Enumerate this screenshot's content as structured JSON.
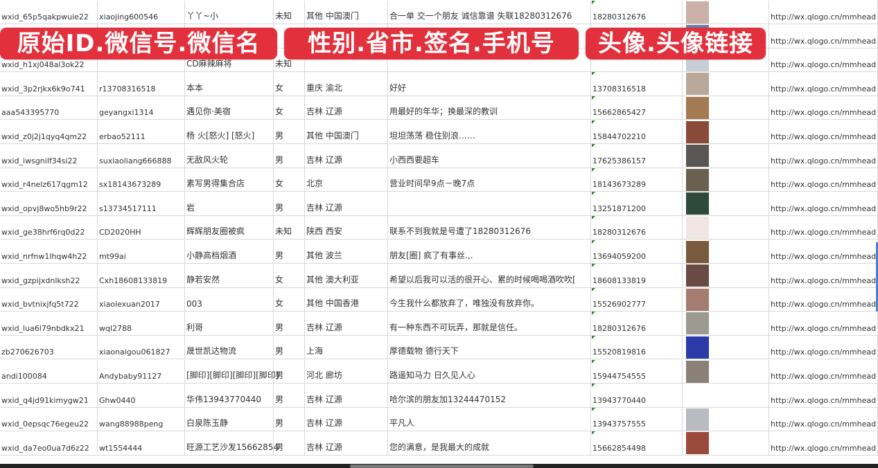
{
  "overlays": {
    "label1": "原始ID.微信号.微信名",
    "label2": "性别.省市.签名.手机号",
    "label3": "头像.头像链接"
  },
  "colors": {
    "overlay": "#e3303d",
    "grid": "#d8d8d8",
    "cell_marker": "#2a8a3a"
  },
  "rows": [
    {
      "id": "wxid_65p5qakpwuie22",
      "wechat": "xiaojing600546",
      "name": "丫丫~小",
      "gender": "未知",
      "region": "其他 中国澳门",
      "signature": "合一单 交一个朋友 诚信靠谱 失联18280312676",
      "phone": "18280312676",
      "avatar": "#c9b1a8",
      "url": "http://wx.qlogo.cn/mmhead"
    },
    {
      "id": "",
      "wechat": "",
      "name": "",
      "gender": "",
      "region": "",
      "signature": "",
      "phone": "",
      "avatar": "#6f7fa8",
      "url": "http://wx.qlogo.cn/mmhead"
    },
    {
      "id": "wxid_h1xj048al3ok22",
      "wechat": "",
      "name": "CD麻辣麻将",
      "gender": "未知",
      "region": "",
      "signature": "",
      "phone": "",
      "avatar": "#c8cdd6",
      "url": "http://wx.qlogo.cn/mmhead"
    },
    {
      "id": "wxid_3p2rjkx6k9o741",
      "wechat": "r13708316518",
      "name": "本本",
      "gender": "女",
      "region": "重庆 渝北",
      "signature": "好好",
      "phone": "13708316518",
      "avatar": "#b9a79a",
      "url": "http://wx.qlogo.cn/mmhead"
    },
    {
      "id": "aaa543395770",
      "wechat": "geyangxi1314",
      "name": "遇见你·美宿",
      "gender": "女",
      "region": "吉林 辽源",
      "signature": "用最好的年华；换最深的教训",
      "phone": "15662865427",
      "avatar": "#a37a52",
      "url": "http://wx.qlogo.cn/mmhead"
    },
    {
      "id": "wxid_z0j2j1qyq4qm22",
      "wechat": "erbao52111",
      "name": "杨 火[怒火] [怒火]",
      "gender": "男",
      "region": "其他 中国澳门",
      "signature": "坦坦荡荡 稳住别浪……",
      "phone": "15844702210",
      "avatar": "#8a4a3a",
      "url": "http://wx.qlogo.cn/mmhead"
    },
    {
      "id": "wxid_iwsgnilf34si22",
      "wechat": "suxiaoliang666888",
      "name": "无敌风火轮",
      "gender": "男",
      "region": "吉林 辽源",
      "signature": "小西西要超车",
      "phone": "17625386157",
      "avatar": "#5a5654",
      "url": "http://wx.qlogo.cn/mmhead"
    },
    {
      "id": "wxid_r4nelz617qgm12",
      "wechat": "sx18143673289",
      "name": "素写男得集合店",
      "gender": "女",
      "region": "北京",
      "signature": "营业时间早9点－晚7点",
      "phone": "18143673289",
      "avatar": "#6a6050",
      "url": "http://wx.qlogo.cn/mmhead"
    },
    {
      "id": "wxid_opvj8wo5hb9r22",
      "wechat": "s13734517111",
      "name": "岩",
      "gender": "男",
      "region": "吉林 辽源",
      "signature": "",
      "phone": "13251871200",
      "avatar": "#2e4a3a",
      "url": "http://wx.qlogo.cn/mmhead"
    },
    {
      "id": "wxid_ge38hrf6rq0d22",
      "wechat": "CD2020HH",
      "name": "辉辉朋友圈被疯",
      "gender": "未知",
      "region": "陕西 西安",
      "signature": "联系不到我就是号遭了18280312676",
      "phone": "18280312676",
      "avatar": "#f1e6e2",
      "url": "http://wx.qlogo.cn/mmhead"
    },
    {
      "id": "wxid_nrfnw1lhqw4h22",
      "wechat": "mt99ai",
      "name": "小静高档烟酒",
      "gender": "男",
      "region": "其他 波兰",
      "signature": "朋友[圈] 疯了有事丝.,.",
      "phone": "13694059200",
      "avatar": "#7a5a3e",
      "url": "http://wx.qlogo.cn/mmhead"
    },
    {
      "id": "wxid_gzpijxdnlksh22",
      "wechat": "Cxh18608133819",
      "name": "静若安然",
      "gender": "女",
      "region": "其他 澳大利亚",
      "signature": "希望以后我可以活的很开心、累的时候喝喝酒吹吹[",
      "phone": "18608133819",
      "avatar": "#6a4a44",
      "url": "http://wx.qlogo.cn/mmhead"
    },
    {
      "id": "wxid_bvtnixjfq5t722",
      "wechat": "xiaolexuan2017",
      "name": "003",
      "gender": "女",
      "region": "其他 中国香港",
      "signature": "今生我什么都放弃了，唯独没有放弃你。",
      "phone": "15526902777",
      "avatar": "#a67c70",
      "url": "http://wx.qlogo.cn/mmhead"
    },
    {
      "id": "wxid_lua6l79nbdkx21",
      "wechat": "wql2788",
      "name": "利哥",
      "gender": "男",
      "region": "吉林 辽源",
      "signature": "有一种东西不可玩弄，那就是信任。",
      "phone": "18280312676",
      "avatar": "#9a9a90",
      "url": "http://wx.qlogo.cn/mmhead"
    },
    {
      "id": "zb270626703",
      "wechat": "xiaonaigou061827",
      "name": "晟世凯达物流",
      "gender": "男",
      "region": "上海",
      "signature": "厚德载物 德行天下",
      "phone": "15520819816",
      "avatar": "#2a3aa8",
      "url": "http://wx.qlogo.cn/mmhead"
    },
    {
      "id": "andi100084",
      "wechat": "Andybaby91127",
      "name": "[脚印][脚印][脚印][脚印]",
      "gender": "男",
      "region": "河北 廊坊",
      "signature": "路遥知马力 日久见人心",
      "phone": "15944754555",
      "avatar": "#8a8078",
      "url": "http://wx.qlogo.cn/mmhead"
    },
    {
      "id": "wxid_q4jd91kimygw21",
      "wechat": "Ghw0440",
      "name": "华伟13943770440",
      "gender": "男",
      "region": "吉林 辽源",
      "signature": "哈尔滨的朋友加13244470152",
      "phone": "13943770440",
      "avatar": "#ffffff",
      "url": "http://wx.qlogo.cn/mmhead"
    },
    {
      "id": "wxid_0epsqc76egeu22",
      "wechat": "wang88988peng",
      "name": "白泉陈玉静",
      "gender": "男",
      "region": "吉林 辽源",
      "signature": "平凡人",
      "phone": "13943757555",
      "avatar": "#b8bcc2",
      "url": "http://wx.qlogo.cn/mmhead"
    },
    {
      "id": "wxid_da7eo0ua7d6z22",
      "wechat": "wt1554444",
      "name": "旺源工艺沙发15662854",
      "gender": "男",
      "region": "吉林 辽源",
      "signature": "您的满意，是我最大的成就",
      "phone": "15662854498",
      "avatar": "#9a4a3a",
      "url": "http://wx.qlogo.cn/mmhead"
    }
  ]
}
